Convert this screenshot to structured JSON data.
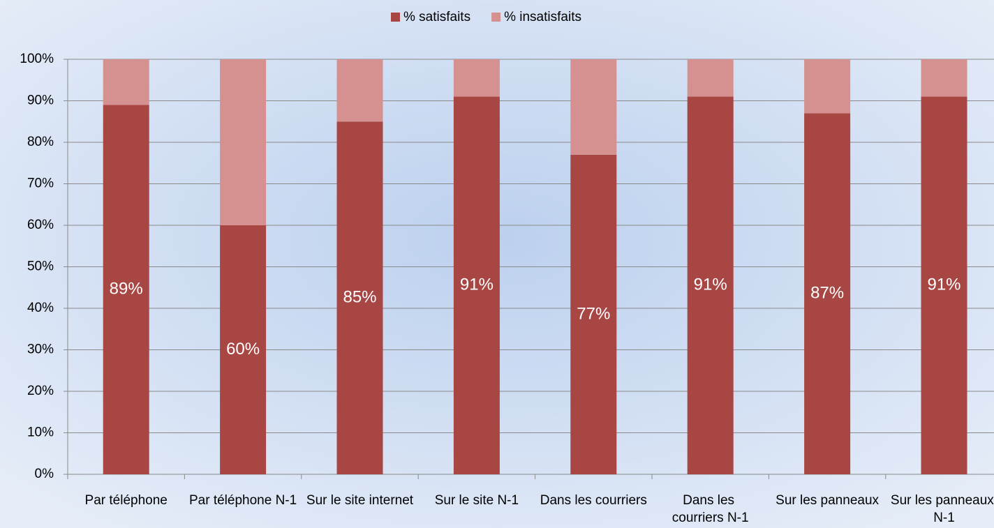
{
  "chart_data": {
    "type": "stacked_bar",
    "categories": [
      "Par téléphone",
      "Par téléphone N-1",
      "Sur le site internet",
      "Sur le site N-1",
      "Dans les courriers",
      "Dans les courriers N-1",
      "Sur les panneaux",
      "Sur les panneaux N-1"
    ],
    "series": [
      {
        "name": "% satisfaits",
        "color": "#a84644",
        "values": [
          89,
          60,
          85,
          91,
          77,
          91,
          87,
          91
        ],
        "value_labels": [
          "89%",
          "60%",
          "85%",
          "91%",
          "77%",
          "91%",
          "87%",
          "91%"
        ]
      },
      {
        "name": "% insatisfaits",
        "color": "#d4918f",
        "values": [
          11,
          40,
          15,
          9,
          23,
          9,
          13,
          9
        ]
      }
    ],
    "ylim": [
      0,
      100
    ],
    "yticks": [
      {
        "value": 0,
        "label": "0%"
      },
      {
        "value": 10,
        "label": "10%"
      },
      {
        "value": 20,
        "label": "20%"
      },
      {
        "value": 30,
        "label": "30%"
      },
      {
        "value": 40,
        "label": "40%"
      },
      {
        "value": 50,
        "label": "50%"
      },
      {
        "value": 60,
        "label": "60%"
      },
      {
        "value": 70,
        "label": "70%"
      },
      {
        "value": 80,
        "label": "80%"
      },
      {
        "value": 90,
        "label": "90%"
      },
      {
        "value": 100,
        "label": "100%"
      }
    ],
    "grid": true,
    "legend": "top"
  }
}
